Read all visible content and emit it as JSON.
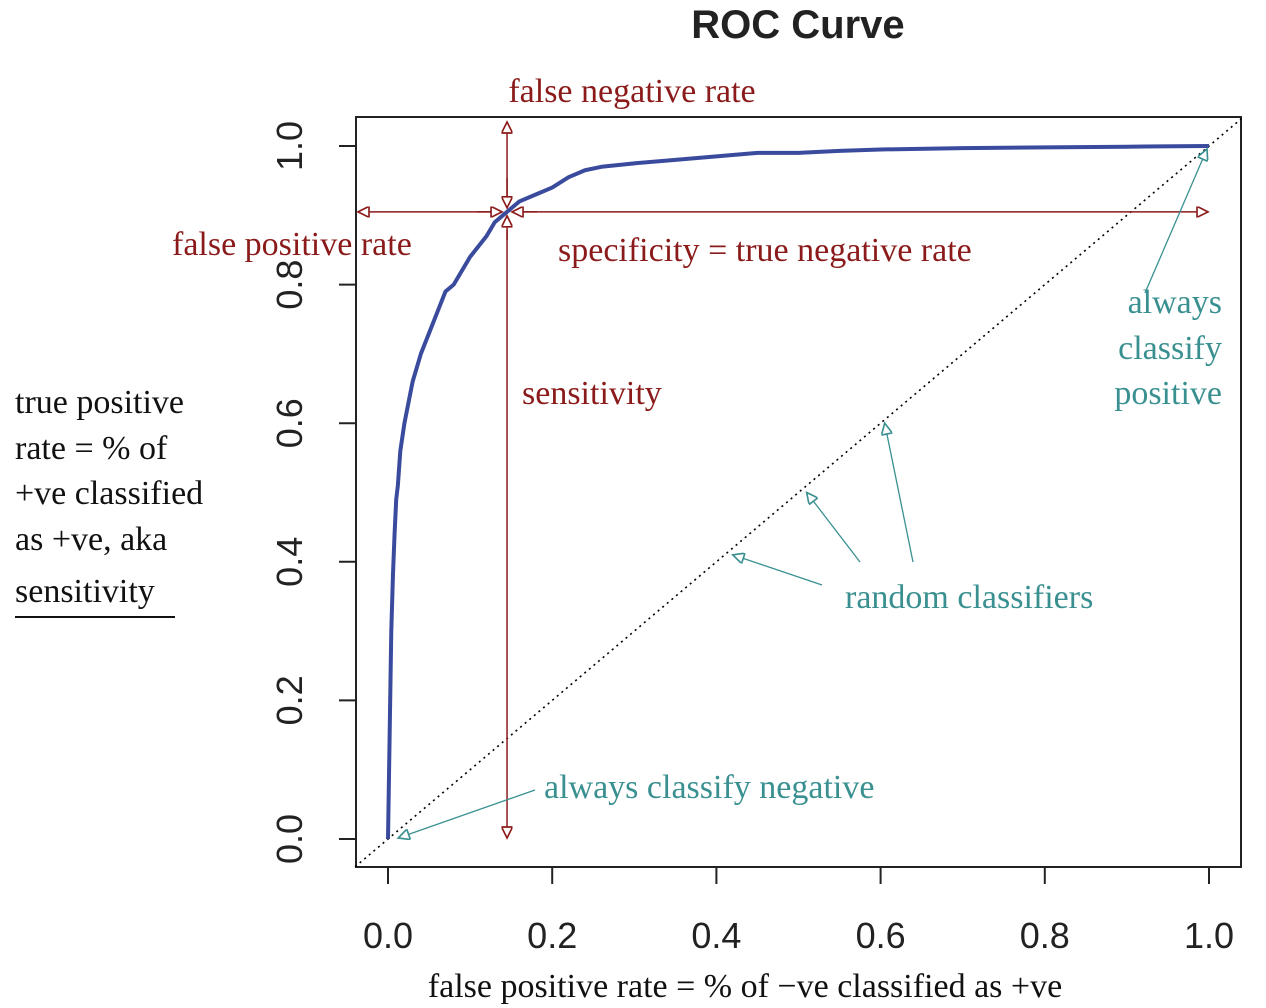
{
  "chart_data": {
    "type": "line",
    "title": "ROC Curve",
    "xlabel": "false positive rate = % of −ve classified as +ve",
    "ylabel_lines": [
      "true positive",
      "rate = % of",
      "+ve classified",
      "as +ve, aka",
      "sensitivity"
    ],
    "xlim": [
      -0.04,
      1.04
    ],
    "ylim": [
      -0.04,
      1.04
    ],
    "x_ticks": [
      0.0,
      0.2,
      0.4,
      0.6,
      0.8,
      1.0
    ],
    "x_tick_labels": [
      "0.0",
      "0.2",
      "0.4",
      "0.6",
      "0.8",
      "1.0"
    ],
    "y_ticks": [
      0.0,
      0.2,
      0.4,
      0.6,
      0.8,
      1.0
    ],
    "y_tick_labels": [
      "0.0",
      "0.2",
      "0.4",
      "0.6",
      "0.8",
      "1.0"
    ],
    "grid": false,
    "series": [
      {
        "color": "#3a4b9e",
        "x": [
          0.0,
          0.002,
          0.004,
          0.006,
          0.008,
          0.01,
          0.012,
          0.015,
          0.02,
          0.025,
          0.03,
          0.035,
          0.04,
          0.05,
          0.06,
          0.07,
          0.08,
          0.09,
          0.1,
          0.11,
          0.12,
          0.13,
          0.14,
          0.15,
          0.16,
          0.18,
          0.2,
          0.22,
          0.24,
          0.26,
          0.3,
          0.35,
          0.4,
          0.45,
          0.5,
          0.55,
          0.6,
          0.7,
          0.8,
          0.9,
          1.0
        ],
        "y": [
          0.0,
          0.15,
          0.3,
          0.38,
          0.44,
          0.49,
          0.51,
          0.56,
          0.6,
          0.63,
          0.66,
          0.68,
          0.7,
          0.73,
          0.76,
          0.79,
          0.8,
          0.82,
          0.84,
          0.855,
          0.87,
          0.89,
          0.9,
          0.91,
          0.92,
          0.93,
          0.94,
          0.955,
          0.965,
          0.97,
          0.975,
          0.98,
          0.985,
          0.99,
          0.99,
          0.993,
          0.995,
          0.997,
          0.998,
          0.999,
          1.0
        ]
      },
      {
        "name": "random classifiers",
        "style": "dotted",
        "color": "#000000",
        "x": [
          -0.04,
          1.04
        ],
        "y": [
          -0.04,
          1.04
        ]
      }
    ],
    "annotations": {
      "operating_point": {
        "x": 0.145,
        "y": 0.905,
        "color": "#8b1a1a"
      },
      "false_negative_rate": "false negative rate",
      "false_positive_rate": "false positive rate",
      "specificity": "specificity = true negative rate",
      "sensitivity": "sensitivity",
      "always_positive_lines": [
        "always",
        "classify",
        "positive"
      ],
      "random_classifiers": "random classifiers",
      "always_negative": "always classify negative",
      "red_color": "#8b1a1a",
      "teal_color": "#3a9090"
    }
  }
}
